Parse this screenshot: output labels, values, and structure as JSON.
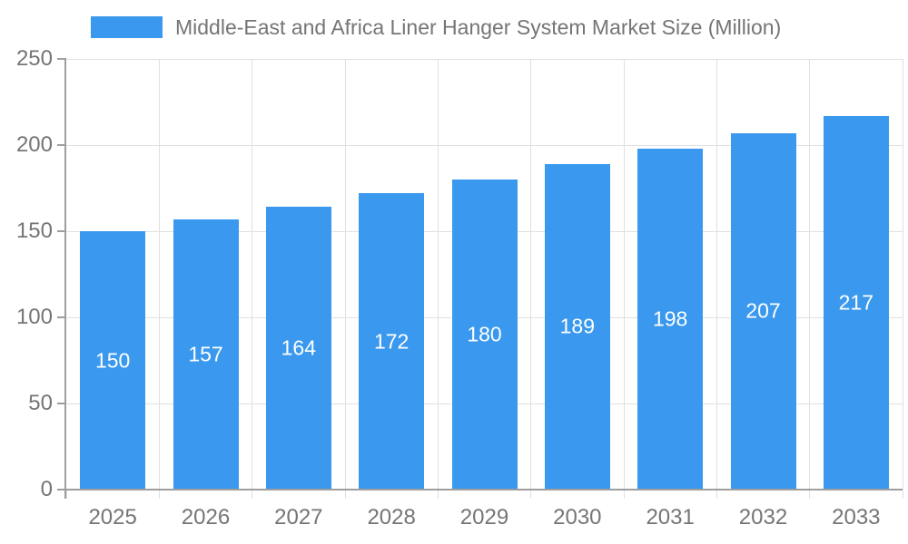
{
  "chart_data": {
    "type": "bar",
    "title": "Middle-East and Africa Liner Hanger System Market Size (Million)",
    "categories": [
      "2025",
      "2026",
      "2027",
      "2028",
      "2029",
      "2030",
      "2031",
      "2032",
      "2033"
    ],
    "values": [
      150,
      157,
      164,
      172,
      180,
      189,
      198,
      207,
      217
    ],
    "xlabel": "",
    "ylabel": "",
    "ylim": [
      0,
      250
    ],
    "yticks": [
      0,
      50,
      100,
      150,
      200,
      250
    ],
    "grid": true,
    "legend_position": "top",
    "bar_labels_inside": true
  },
  "legend": {
    "label": "Middle-East and Africa Liner Hanger System Market Size (Million)"
  },
  "colors": {
    "bar": "#3a99ee",
    "axis": "#9e9e9e",
    "grid": "#e0e0e0",
    "text": "#757575",
    "bar_label": "#ffffff",
    "background": "#ffffff"
  }
}
